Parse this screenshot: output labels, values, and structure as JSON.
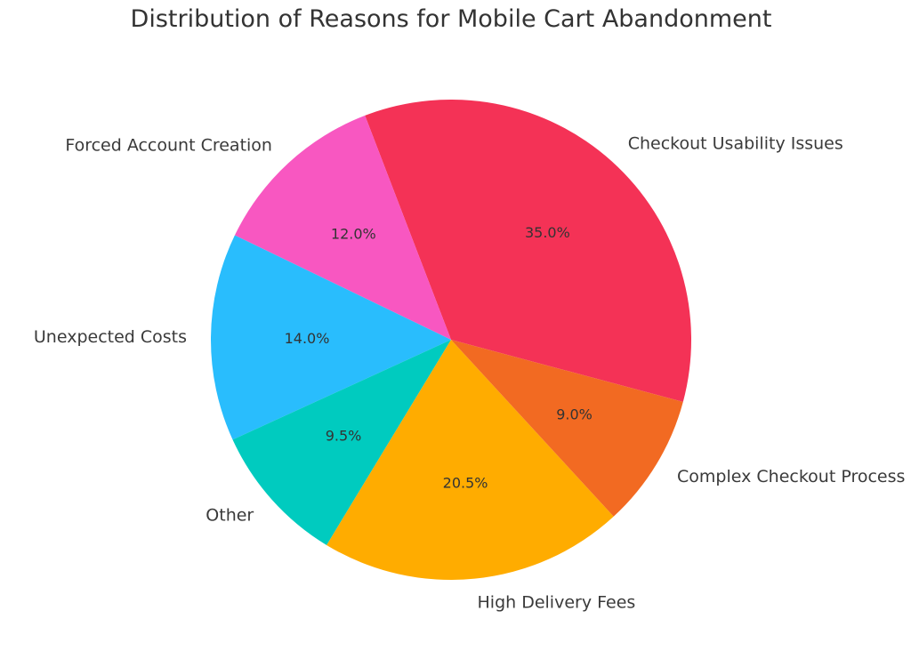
{
  "chart_data": {
    "type": "pie",
    "title": "Distribution of Reasons for Mobile Cart Abandonment",
    "slices": [
      {
        "label": "Checkout Usability Issues",
        "value": 35.0,
        "pct_label": "35.0%",
        "color": "#F43256"
      },
      {
        "label": "Forced Account Creation",
        "value": 12.0,
        "pct_label": "12.0%",
        "color": "#F857C1"
      },
      {
        "label": "Unexpected Costs",
        "value": 14.0,
        "pct_label": "14.0%",
        "color": "#29BDFD"
      },
      {
        "label": "Other",
        "value": 9.5,
        "pct_label": "9.5%",
        "color": "#00CBBF"
      },
      {
        "label": "High Delivery Fees",
        "value": 20.5,
        "pct_label": "20.5%",
        "color": "#FFAC00"
      },
      {
        "label": "Complex Checkout Process",
        "value": 9.0,
        "pct_label": "9.0%",
        "color": "#F26A22"
      }
    ],
    "legend": false
  }
}
